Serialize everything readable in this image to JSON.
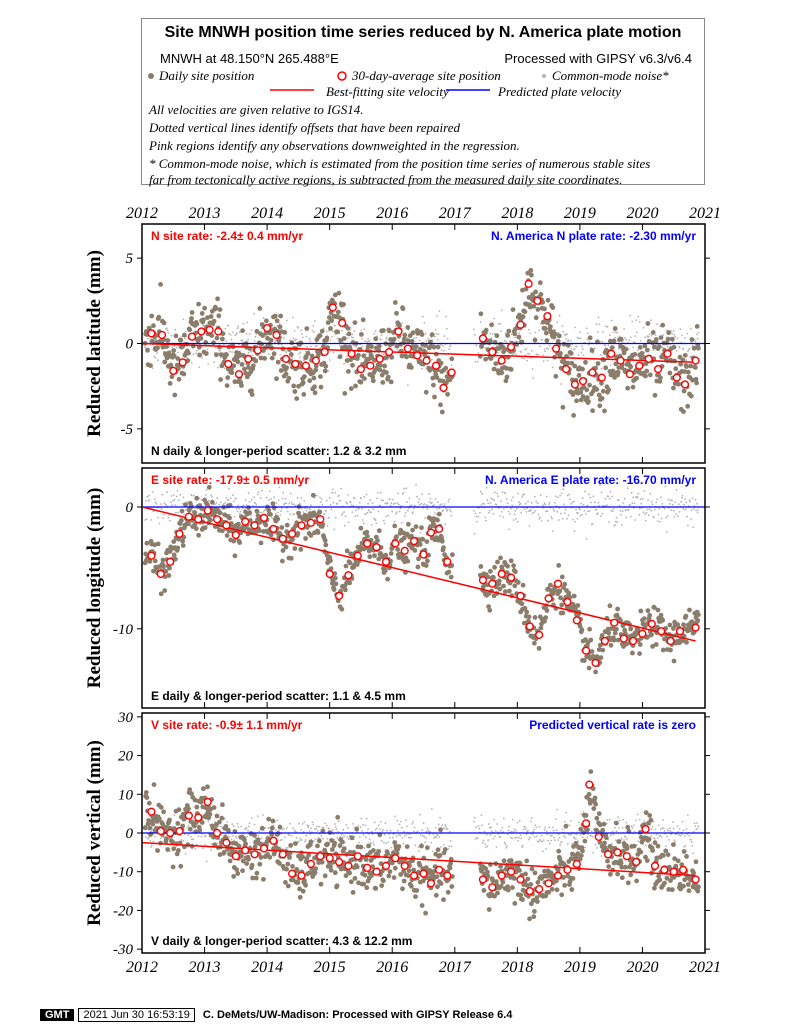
{
  "legend": {
    "title": "Site MNWH position time series reduced by N. America plate motion",
    "site_location": "MNWH at 48.150°N 265.488°E",
    "processing": "Processed with GIPSY v6.3/v6.4",
    "daily_label": "Daily site position",
    "avg_label": "30-day-average site position",
    "cm_label": "Common-mode noise*",
    "best_fit_label": "Best-fitting site velocity",
    "predicted_label": "Predicted plate velocity",
    "notes": [
      "All velocities are given relative to IGS14.",
      "Dotted vertical lines identify offsets that have been repaired",
      "Pink regions identify any observations downweighted in the regression.",
      "* Common-mode noise, which is estimated from the position time series of numerous stable sites",
      "far from tectonically active regions, is subtracted from the measured daily site coordinates."
    ]
  },
  "colors": {
    "daily": "#8b7d6b",
    "common_mode": "#b4b4b4",
    "avg_fill": "#ffffff",
    "avg_stroke": "#ff0000",
    "best_fit": "#ff0000",
    "predicted": "#0000ff",
    "rate_text": "#ff0000",
    "plate_text": "#0000ff"
  },
  "chart_data": [
    {
      "type": "scatter",
      "panel": "north",
      "ylabel": "Reduced latitude (mm)",
      "xlim": [
        2012.0,
        2021.0
      ],
      "ylim": [
        -7,
        7
      ],
      "yticks": [
        -5,
        0,
        5
      ],
      "xticks": [
        2012,
        2013,
        2014,
        2015,
        2016,
        2017,
        2018,
        2019,
        2020,
        2021
      ],
      "site_rate": "N site rate:  -2.4± 0.4 mm/yr",
      "plate_rate": "N. America N plate rate: -2.30 mm/yr",
      "scatter": "N daily & longer-period scatter:   1.2 &   3.2 mm",
      "best_fit": {
        "x": [
          2012.0,
          2020.85
        ],
        "y": [
          0.0,
          -1.1
        ]
      },
      "predicted": {
        "y": 0
      },
      "avg30": {
        "x": [
          2012.15,
          2012.32,
          2012.5,
          2012.65,
          2012.8,
          2012.95,
          2013.08,
          2013.22,
          2013.38,
          2013.55,
          2013.7,
          2013.85,
          2014.0,
          2014.15,
          2014.3,
          2014.45,
          2014.62,
          2014.78,
          2014.92,
          2015.05,
          2015.2,
          2015.35,
          2015.5,
          2015.65,
          2015.8,
          2015.95,
          2016.1,
          2016.25,
          2016.4,
          2016.55,
          2016.7,
          2016.82,
          2016.95,
          2017.45,
          2017.6,
          2017.75,
          2017.9,
          2018.05,
          2018.18,
          2018.32,
          2018.48,
          2018.62,
          2018.78,
          2018.92,
          2019.05,
          2019.2,
          2019.35,
          2019.5,
          2019.65,
          2019.8,
          2019.95,
          2020.1,
          2020.25,
          2020.4,
          2020.55,
          2020.68,
          2020.85
        ],
        "y": [
          0.6,
          0.5,
          -1.6,
          -1.1,
          0.4,
          0.7,
          0.8,
          0.7,
          -1.2,
          -1.8,
          -0.9,
          -0.4,
          0.9,
          0.5,
          -0.9,
          -1.2,
          -1.3,
          -1.0,
          -0.5,
          2.1,
          1.2,
          -0.6,
          -1.5,
          -1.3,
          -0.9,
          -0.5,
          0.7,
          -0.3,
          -0.7,
          -1.0,
          -1.3,
          -2.6,
          -1.7,
          0.3,
          -0.5,
          -1.0,
          -0.2,
          1.1,
          3.5,
          2.5,
          1.6,
          -0.3,
          -1.5,
          -2.4,
          -2.2,
          -1.7,
          -2.0,
          -0.6,
          -1.0,
          -1.8,
          -1.3,
          -0.9,
          -1.5,
          -0.6,
          -2.0,
          -2.4,
          -1.0
        ]
      }
    },
    {
      "type": "scatter",
      "panel": "east",
      "ylabel": "Reduced longitude (mm)",
      "xlim": [
        2012.0,
        2021.0
      ],
      "ylim": [
        -16.5,
        3.2
      ],
      "yticks": [
        -10,
        0
      ],
      "xticks": [
        2012,
        2013,
        2014,
        2015,
        2016,
        2017,
        2018,
        2019,
        2020,
        2021
      ],
      "site_rate": "E site rate: -17.9± 0.5 mm/yr",
      "plate_rate": "N. America E plate rate: -16.70 mm/yr",
      "scatter": "E daily & longer-period scatter:   1.1 &   4.5 mm",
      "best_fit": {
        "x": [
          2012.0,
          2020.85
        ],
        "y": [
          0.0,
          -11.0
        ]
      },
      "predicted": {
        "y": 0
      },
      "avg30": {
        "x": [
          2012.15,
          2012.3,
          2012.45,
          2012.6,
          2012.75,
          2012.9,
          2013.05,
          2013.2,
          2013.35,
          2013.5,
          2013.65,
          2013.8,
          2013.95,
          2014.1,
          2014.25,
          2014.4,
          2014.55,
          2014.7,
          2014.85,
          2015.0,
          2015.15,
          2015.3,
          2015.45,
          2015.6,
          2015.75,
          2015.9,
          2016.05,
          2016.2,
          2016.35,
          2016.5,
          2016.62,
          2016.75,
          2016.88,
          2017.45,
          2017.6,
          2017.75,
          2017.9,
          2018.05,
          2018.2,
          2018.35,
          2018.5,
          2018.65,
          2018.8,
          2018.95,
          2019.1,
          2019.25,
          2019.4,
          2019.55,
          2019.7,
          2019.85,
          2020.0,
          2020.15,
          2020.3,
          2020.45,
          2020.6,
          2020.85
        ],
        "y": [
          -4.0,
          -5.5,
          -4.5,
          -2.2,
          -0.8,
          -1.0,
          -0.3,
          -1.0,
          -1.5,
          -2.3,
          -1.2,
          -1.5,
          -0.9,
          -1.8,
          -2.6,
          -2.2,
          -1.5,
          -1.3,
          -1.0,
          -5.5,
          -7.3,
          -5.6,
          -4.0,
          -3.0,
          -3.3,
          -4.5,
          -3.0,
          -3.6,
          -2.8,
          -3.9,
          -2.1,
          -1.8,
          -4.5,
          -6.0,
          -6.3,
          -5.5,
          -5.8,
          -7.3,
          -9.8,
          -10.5,
          -7.5,
          -6.3,
          -7.8,
          -9.3,
          -11.8,
          -12.8,
          -11.0,
          -9.5,
          -10.8,
          -11.0,
          -10.4,
          -9.6,
          -10.2,
          -11.0,
          -10.2,
          -9.9
        ]
      }
    },
    {
      "type": "scatter",
      "panel": "vertical",
      "ylabel": "Reduced vertical (mm)",
      "xlim": [
        2012.0,
        2021.0
      ],
      "ylim": [
        -31,
        31
      ],
      "yticks": [
        -30,
        -20,
        -10,
        0,
        10,
        20,
        30
      ],
      "xticks": [
        2012,
        2013,
        2014,
        2015,
        2016,
        2017,
        2018,
        2019,
        2020,
        2021
      ],
      "site_rate": "V site rate:  -0.9± 1.1 mm/yr",
      "plate_rate": "Predicted vertical rate is zero",
      "scatter": "V daily & longer-period scatter:   4.3 &  12.2 mm",
      "best_fit": {
        "x": [
          2012.0,
          2020.85
        ],
        "y": [
          -2.5,
          -11.0
        ]
      },
      "predicted": {
        "y": 0
      },
      "avg30": {
        "x": [
          2012.15,
          2012.3,
          2012.45,
          2012.6,
          2012.75,
          2012.9,
          2013.05,
          2013.2,
          2013.35,
          2013.5,
          2013.65,
          2013.8,
          2013.95,
          2014.1,
          2014.25,
          2014.4,
          2014.55,
          2014.7,
          2014.85,
          2015.0,
          2015.15,
          2015.3,
          2015.45,
          2015.6,
          2015.75,
          2015.9,
          2016.05,
          2016.2,
          2016.35,
          2016.5,
          2016.62,
          2016.75,
          2016.88,
          2017.45,
          2017.6,
          2017.75,
          2017.9,
          2018.05,
          2018.2,
          2018.35,
          2018.5,
          2018.65,
          2018.8,
          2018.95,
          2019.1,
          2019.15,
          2019.3,
          2019.45,
          2019.6,
          2019.75,
          2019.9,
          2020.05,
          2020.2,
          2020.35,
          2020.5,
          2020.65,
          2020.85
        ],
        "y": [
          5.5,
          0.5,
          0.0,
          0.5,
          4.5,
          4.0,
          8.0,
          0.0,
          -2.5,
          -6.0,
          -4.5,
          -5.5,
          -4.0,
          -2.0,
          -5.5,
          -10.5,
          -11.0,
          -8.0,
          -6.0,
          -6.5,
          -7.5,
          -8.5,
          -6.0,
          -9.0,
          -10.0,
          -8.5,
          -6.5,
          -8.5,
          -11.0,
          -10.5,
          -13.0,
          -9.5,
          -11.0,
          -12.0,
          -14.0,
          -11.0,
          -10.0,
          -12.0,
          -15.0,
          -14.5,
          -13.0,
          -11.0,
          -9.5,
          -8.0,
          2.5,
          12.5,
          -1.0,
          -5.5,
          -5.0,
          -6.0,
          -7.5,
          1.0,
          -8.5,
          -9.5,
          -10.0,
          -9.5,
          -12.0
        ]
      }
    }
  ]
}
